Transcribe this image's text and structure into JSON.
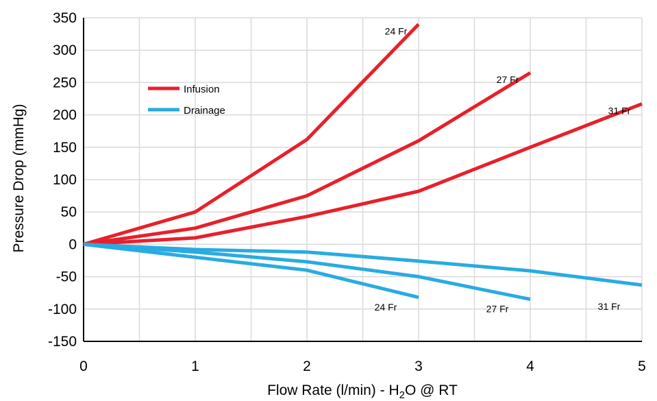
{
  "chart_data": {
    "type": "line",
    "xlabel": "Flow Rate (l/min) - H",
    "xlabel_sub": "2",
    "xlabel_tail": "O @ RT",
    "ylabel": "Pressure Drop (mmHg)",
    "xlim": [
      0,
      5
    ],
    "ylim": [
      -150,
      350
    ],
    "x_ticks": [
      "0",
      "1",
      "2",
      "3",
      "4",
      "5"
    ],
    "y_ticks": [
      "350",
      "300",
      "250",
      "200",
      "150",
      "100",
      "50",
      "0",
      "-50",
      "-100",
      "-150"
    ],
    "grid": true,
    "legend_position": "upper-left",
    "legend": [
      {
        "name": "Infusion",
        "color": "#e8202a"
      },
      {
        "name": "Drainage",
        "color": "#29abe2"
      }
    ],
    "series": [
      {
        "group": "Infusion",
        "label": "24 Fr",
        "color": "#e8202a",
        "label_pos": "left",
        "points": [
          [
            0,
            0
          ],
          [
            1,
            50
          ],
          [
            2,
            162
          ],
          [
            3,
            340
          ]
        ]
      },
      {
        "group": "Infusion",
        "label": "27 Fr",
        "color": "#e8202a",
        "label_pos": "left",
        "points": [
          [
            0,
            0
          ],
          [
            1,
            25
          ],
          [
            2,
            75
          ],
          [
            3,
            160
          ],
          [
            4,
            265
          ]
        ]
      },
      {
        "group": "Infusion",
        "label": "31 Fr",
        "color": "#e8202a",
        "label_pos": "left",
        "points": [
          [
            0,
            0
          ],
          [
            1,
            10
          ],
          [
            2,
            43
          ],
          [
            3,
            82
          ],
          [
            4,
            150
          ],
          [
            5,
            217
          ]
        ]
      },
      {
        "group": "Drainage",
        "label": "24 Fr",
        "color": "#29abe2",
        "label_pos": "below-left",
        "points": [
          [
            0,
            0
          ],
          [
            1,
            -20
          ],
          [
            2,
            -40
          ],
          [
            3,
            -82
          ]
        ]
      },
      {
        "group": "Drainage",
        "label": "27 Fr",
        "color": "#29abe2",
        "label_pos": "below-left",
        "points": [
          [
            0,
            0
          ],
          [
            1,
            -12
          ],
          [
            2,
            -27
          ],
          [
            3,
            -50
          ],
          [
            4,
            -85
          ]
        ]
      },
      {
        "group": "Drainage",
        "label": "31 Fr",
        "color": "#29abe2",
        "label_pos": "below-left",
        "points": [
          [
            0,
            0
          ],
          [
            1,
            -8
          ],
          [
            2,
            -12
          ],
          [
            3,
            -26
          ],
          [
            4,
            -41
          ],
          [
            5,
            -63
          ]
        ]
      }
    ]
  }
}
